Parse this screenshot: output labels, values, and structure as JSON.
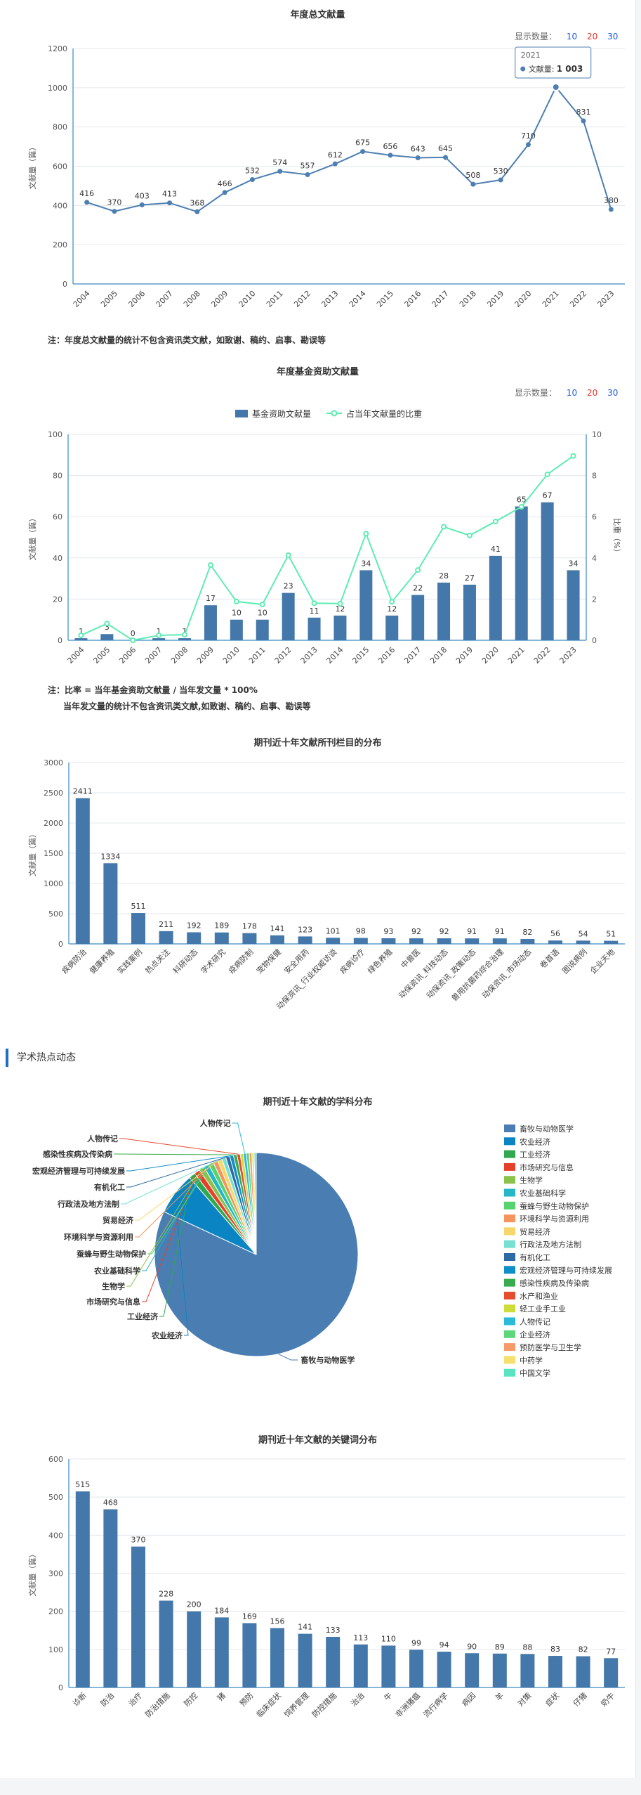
{
  "selector": {
    "label": "显示数量：",
    "opt10": "10",
    "opt20": "20",
    "opt30": "30"
  },
  "chart1": {
    "title": "年度总文献量",
    "note": "注：年度总文献量的统计不包含资讯类文献，如致谢、稿约、启事、勘误等",
    "tooltip": {
      "year": "2021",
      "label": "文献量:",
      "value": "1 003"
    }
  },
  "chart2": {
    "title": "年度基金资助文献量",
    "legend_bar": "基金资助文献量",
    "legend_line": "占当年文献量的比重",
    "note1": "注：比率 = 当年基金资助文献量 / 当年发文量 * 100%",
    "note2": "当年发文量的统计不包含资讯类文献,如致谢、稿约、启事、勘误等"
  },
  "chart3": {
    "title": "期刊近十年文献所刊栏目的分布"
  },
  "section": {
    "title": "学术热点动态"
  },
  "chart4": {
    "title": "期刊近十年文献的学科分布"
  },
  "chart5": {
    "title": "期刊近十年文献的关键词分布"
  },
  "chart_data": [
    {
      "type": "line",
      "title": "年度总文献量",
      "ylabel": "文献量（篇）",
      "x": [
        "2004",
        "2005",
        "2006",
        "2007",
        "2008",
        "2009",
        "2010",
        "2011",
        "2012",
        "2013",
        "2014",
        "2015",
        "2016",
        "2017",
        "2018",
        "2019",
        "2020",
        "2021",
        "2022",
        "2023"
      ],
      "values": [
        416,
        370,
        403,
        413,
        368,
        466,
        532,
        574,
        557,
        612,
        675,
        656,
        643,
        645,
        508,
        530,
        710,
        1003,
        831,
        380
      ],
      "data_labels": [
        "416",
        "370",
        "403",
        "413",
        "368",
        "466",
        "532",
        "574",
        "557",
        "612",
        "675",
        "656",
        "643",
        "645",
        "508",
        "530",
        "710",
        "",
        "831",
        "380"
      ],
      "ylim": [
        0,
        1200
      ],
      "yticks": [
        0,
        200,
        400,
        600,
        800,
        1000,
        1200
      ],
      "color": "#4d7fb0"
    },
    {
      "type": "bar",
      "title": "年度基金资助文献量",
      "ylabel": "文献量（篇）",
      "y2label": "比重（%）",
      "x": [
        "2004",
        "2005",
        "2006",
        "2007",
        "2008",
        "2009",
        "2010",
        "2011",
        "2012",
        "2013",
        "2014",
        "2015",
        "2016",
        "2017",
        "2018",
        "2019",
        "2020",
        "2021",
        "2022",
        "2023"
      ],
      "series": [
        {
          "name": "基金资助文献量",
          "values": [
            1,
            3,
            0,
            1,
            1,
            17,
            10,
            10,
            23,
            11,
            12,
            34,
            12,
            22,
            28,
            27,
            41,
            65,
            67,
            34
          ],
          "color": "#4477aa"
        },
        {
          "name": "占当年文献量的比重",
          "values": [
            0.24,
            0.81,
            0,
            0.24,
            0.27,
            3.65,
            1.88,
            1.74,
            4.13,
            1.8,
            1.78,
            5.18,
            1.87,
            3.41,
            5.51,
            5.09,
            5.77,
            6.48,
            8.06,
            8.95
          ],
          "color": "#5eecb3"
        }
      ],
      "ylim": [
        0,
        100
      ],
      "yticks": [
        0,
        20,
        40,
        60,
        80,
        100
      ],
      "y2lim": [
        0,
        10
      ],
      "y2ticks": [
        0,
        2,
        4,
        6,
        8,
        10
      ]
    },
    {
      "type": "bar",
      "title": "期刊近十年文献所刊栏目的分布",
      "ylabel": "文献量（篇）",
      "categories": [
        "疾病防治",
        "健康养殖",
        "实践案例",
        "热点关注",
        "科研动态",
        "学术研究",
        "疫病防制",
        "宠物保健",
        "安全用药",
        "动保资讯_行业权威访谈",
        "疾病诊疗",
        "绿色养殖",
        "中兽医",
        "动保资讯_科技动态",
        "动保资讯_政策动态",
        "兽用抗菌药综合治理",
        "动保资讯_市场动态",
        "卷首语",
        "图说病例",
        "企业天地"
      ],
      "values": [
        2411,
        1334,
        511,
        211,
        192,
        189,
        178,
        141,
        123,
        101,
        98,
        93,
        92,
        92,
        91,
        91,
        82,
        56,
        54,
        51
      ],
      "ylim": [
        0,
        3000
      ],
      "yticks": [
        0,
        500,
        1000,
        1500,
        2000,
        2500,
        3000
      ],
      "color": "#4477aa"
    },
    {
      "type": "pie",
      "title": "期刊近十年文献的学科分布",
      "labels": [
        "畜牧与动物医学",
        "农业经济",
        "工业经济",
        "市场研究与信息",
        "生物学",
        "农业基础科学",
        "蚕蜂与野生动物保护",
        "环境科学与资源利用",
        "贸易经济",
        "行政法及地方法制",
        "有机化工",
        "宏观经济管理与可持续发展",
        "感染性疾病及传染病",
        "水产和渔业",
        "轻工业手工业",
        "人物传记",
        "企业经济",
        "预防医学与卫生学",
        "中药学",
        "中国文学"
      ],
      "values": [
        4400,
        360,
        55,
        50,
        45,
        45,
        42,
        40,
        38,
        36,
        34,
        32,
        30,
        28,
        26,
        26,
        24,
        22,
        20,
        18
      ],
      "colors": [
        "#4a7eb3",
        "#0b84c3",
        "#2fa84f",
        "#e5412a",
        "#8bc34a",
        "#25b6c8",
        "#55d36f",
        "#f5955b",
        "#f7d76a",
        "#78e0d3",
        "#2e6aa3",
        "#0e8fc7",
        "#3aaa4e",
        "#e44d2e",
        "#cddc39",
        "#2bbbd8",
        "#5dd67c",
        "#f79a6a",
        "#f6e06d",
        "#5ae3c1"
      ],
      "callout_labels": [
        "畜牧与动物医学",
        "农业经济",
        "工业经济",
        "市场研究与信息",
        "生物学",
        "农业基础科学",
        "蚕蜂与野生动物保护",
        "环境科学与资源利用",
        "贸易经济",
        "行政法及地方法制",
        "有机化工",
        "宏观经济管理与可持续发展",
        "感染性疾病及传染病",
        "人物传记"
      ]
    },
    {
      "type": "bar",
      "title": "期刊近十年文献的关键词分布",
      "ylabel": "文献量（篇）",
      "categories": [
        "诊断",
        "防治",
        "治疗",
        "防治措施",
        "防控",
        "猪",
        "预防",
        "临床症状",
        "饲养管理",
        "防控措施",
        "治治",
        "牛",
        "非洲猪瘟",
        "流行病学",
        "病因",
        "羊",
        "对策",
        "症状",
        "仔猪",
        "奶牛"
      ],
      "values": [
        515,
        468,
        370,
        228,
        200,
        184,
        169,
        156,
        141,
        133,
        113,
        110,
        99,
        94,
        90,
        89,
        88,
        83,
        82,
        77
      ],
      "ylim": [
        0,
        600
      ],
      "yticks": [
        0,
        100,
        200,
        300,
        400,
        500,
        600
      ],
      "color": "#4477aa"
    }
  ]
}
